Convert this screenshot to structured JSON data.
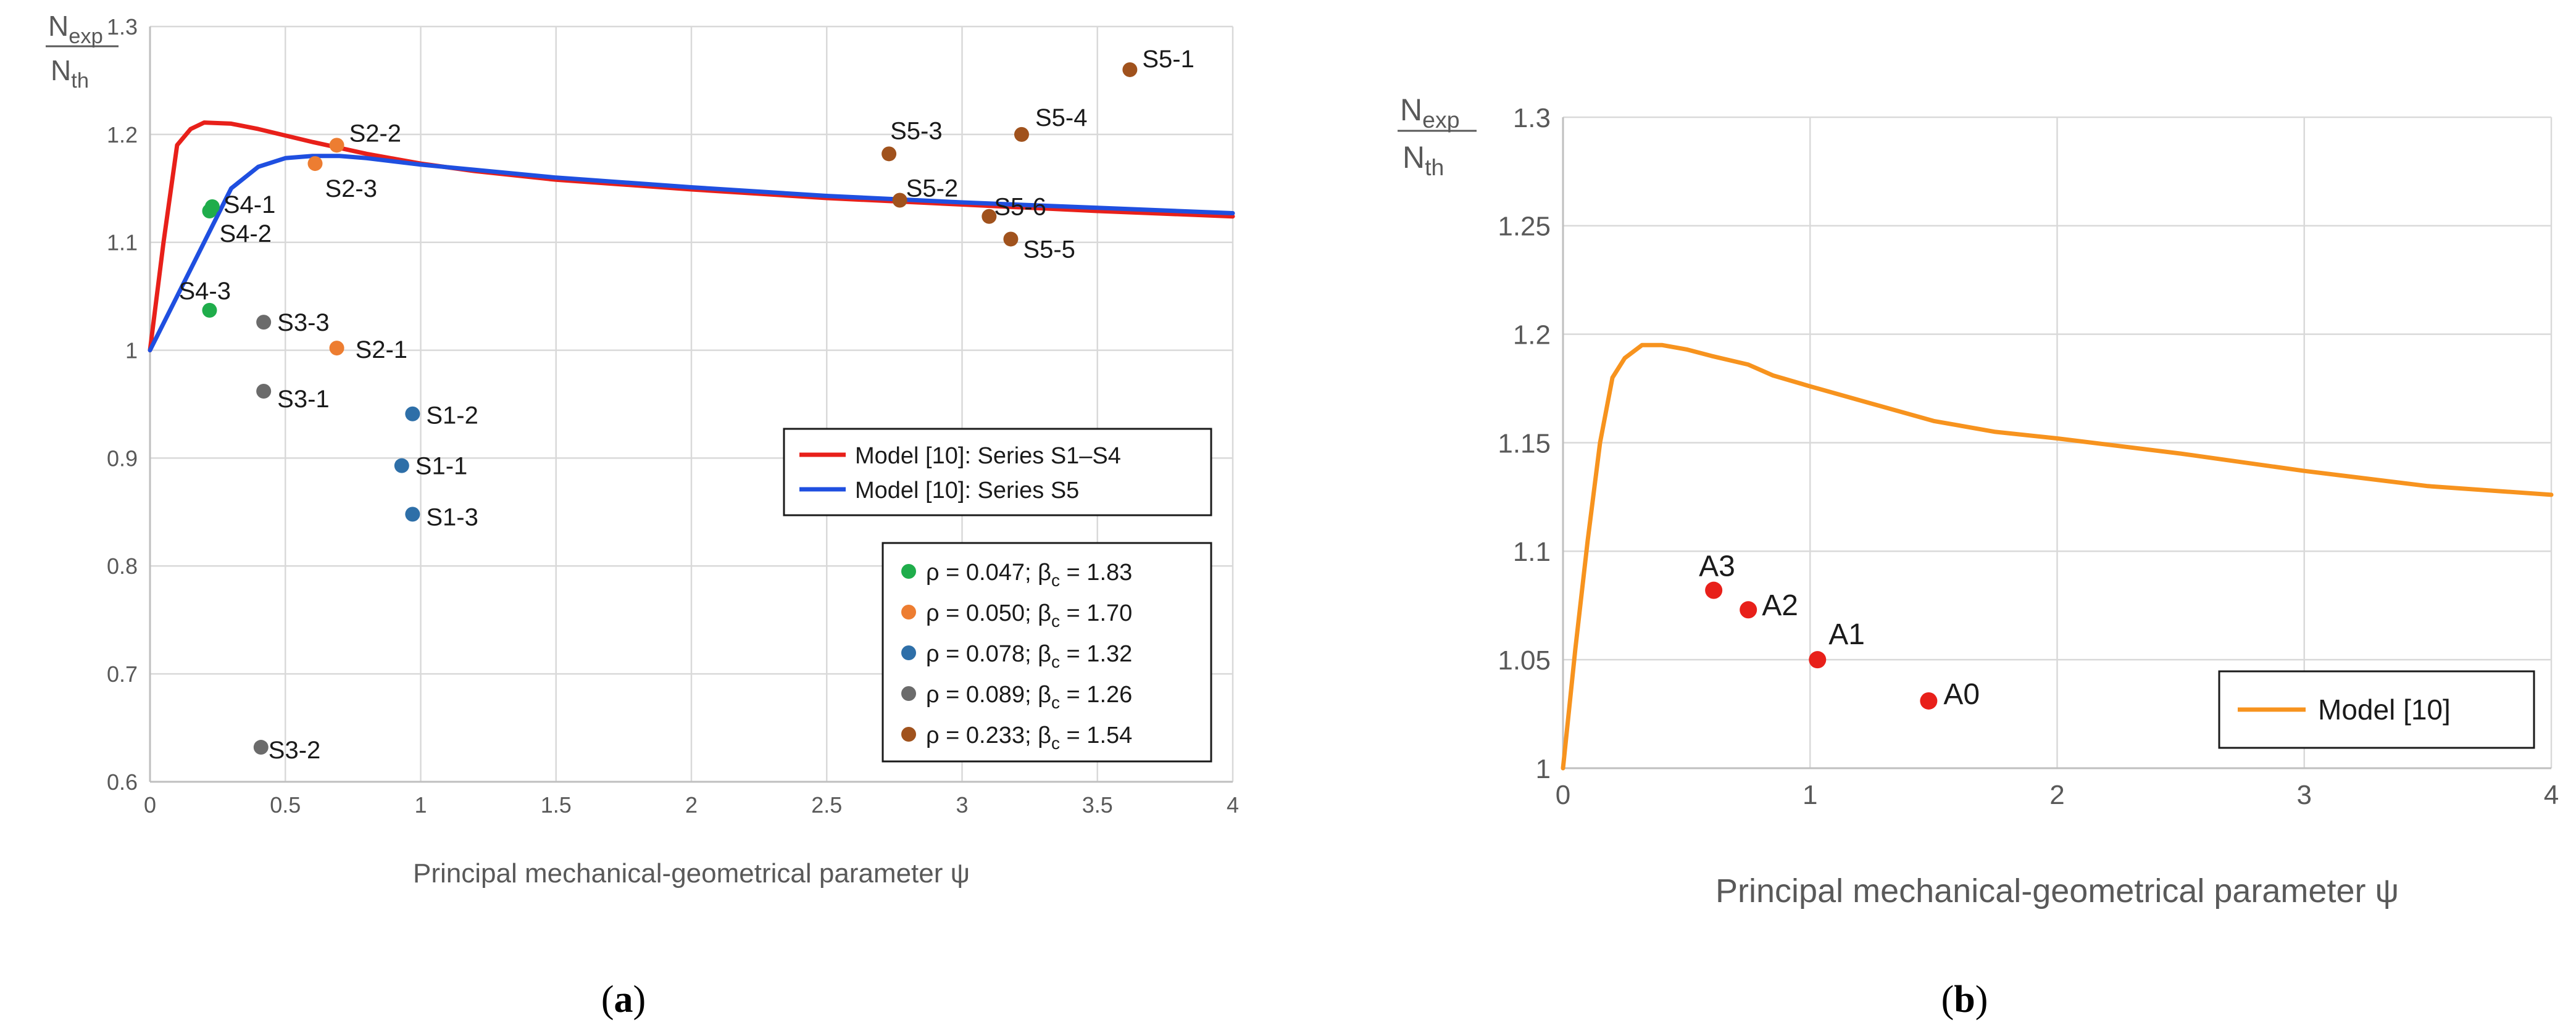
{
  "chart_data": [
    {
      "type": "scatter",
      "panel_label": "(a)",
      "ylabel_num": "N",
      "ylabel_num_sub": "exp",
      "ylabel_den": "N",
      "ylabel_den_sub": "th",
      "xlabel": "Principal mechanical-geometrical parameter ψ",
      "xlim": [
        0,
        4
      ],
      "ylim": [
        0.6,
        1.3
      ],
      "x_ticks": [
        0,
        0.5,
        1,
        1.5,
        2,
        2.5,
        3,
        3.5,
        4
      ],
      "y_ticks": [
        0.6,
        0.7,
        0.8,
        0.9,
        1,
        1.1,
        1.2,
        1.3
      ],
      "x_tick_labels": [
        "0",
        "0.5",
        "1",
        "1.5",
        "2",
        "2.5",
        "3",
        "3.5",
        "4"
      ],
      "y_tick_labels": [
        "0.6",
        "0.7",
        "0.8",
        "0.9",
        "1",
        "1.1",
        "1.2",
        "1.3"
      ],
      "grid": true,
      "lines": [
        {
          "name": "Model [10]: Series S1–S4",
          "color": "#e8201a",
          "x": [
            0,
            0.05,
            0.1,
            0.15,
            0.2,
            0.3,
            0.4,
            0.6,
            0.8,
            1,
            1.2,
            1.5,
            2,
            2.5,
            3,
            3.5,
            4
          ],
          "y": [
            1.0,
            1.1,
            1.19,
            1.205,
            1.211,
            1.21,
            1.205,
            1.193,
            1.182,
            1.173,
            1.166,
            1.158,
            1.149,
            1.141,
            1.135,
            1.129,
            1.124
          ]
        },
        {
          "name": "Model [10]: Series S5",
          "color": "#1f4fe0",
          "x": [
            0,
            0.1,
            0.2,
            0.3,
            0.4,
            0.5,
            0.6,
            0.7,
            0.8,
            1,
            1.5,
            2,
            2.5,
            3,
            3.5,
            4
          ],
          "y": [
            1.0,
            1.05,
            1.1,
            1.15,
            1.17,
            1.178,
            1.18,
            1.18,
            1.178,
            1.172,
            1.16,
            1.151,
            1.143,
            1.137,
            1.132,
            1.127
          ]
        }
      ],
      "point_groups": [
        {
          "name": "ρ = 0.047; βc = 1.83",
          "rho": "ρ = 0.047; β",
          "sub": "c",
          "beta": " = 1.83",
          "color": "#1fad4b",
          "points": [
            {
              "label": "S4-1",
              "x": 0.23,
              "y": 1.133
            },
            {
              "label": "S4-2",
              "x": 0.22,
              "y": 1.129
            },
            {
              "label": "S4-3",
              "x": 0.22,
              "y": 1.037
            }
          ]
        },
        {
          "name": "ρ = 0.050; βc = 1.70",
          "rho": "ρ = 0.050; β",
          "sub": "c",
          "beta": " = 1.70",
          "color": "#ed7d31",
          "points": [
            {
              "label": "S2-2",
              "x": 0.69,
              "y": 1.19
            },
            {
              "label": "S2-3",
              "x": 0.61,
              "y": 1.173
            },
            {
              "label": "S2-1",
              "x": 0.69,
              "y": 1.002
            }
          ]
        },
        {
          "name": "ρ = 0.078; βc = 1.32",
          "rho": "ρ = 0.078; β",
          "sub": "c",
          "beta": " = 1.32",
          "color": "#2e6fa8",
          "points": [
            {
              "label": "S1-2",
              "x": 0.97,
              "y": 0.941
            },
            {
              "label": "S1-1",
              "x": 0.93,
              "y": 0.893
            },
            {
              "label": "S1-3",
              "x": 0.97,
              "y": 0.848
            }
          ]
        },
        {
          "name": "ρ = 0.089; βc = 1.26",
          "rho": "ρ = 0.089; β",
          "sub": "c",
          "beta": " = 1.26",
          "color": "#6b6b6b",
          "points": [
            {
              "label": "S3-3",
              "x": 0.42,
              "y": 1.026
            },
            {
              "label": "S3-1",
              "x": 0.42,
              "y": 0.962
            },
            {
              "label": "S3-2",
              "x": 0.41,
              "y": 0.632
            }
          ]
        },
        {
          "name": "ρ = 0.233; βc = 1.54",
          "rho": "ρ = 0.233; β",
          "sub": "c",
          "beta": " = 1.54",
          "color": "#a0521d",
          "points": [
            {
              "label": "S5-1",
              "x": 3.62,
              "y": 1.26
            },
            {
              "label": "S5-4",
              "x": 3.22,
              "y": 1.2
            },
            {
              "label": "S5-3",
              "x": 2.73,
              "y": 1.182
            },
            {
              "label": "S5-2",
              "x": 2.77,
              "y": 1.139
            },
            {
              "label": "S5-6",
              "x": 3.1,
              "y": 1.124
            },
            {
              "label": "S5-5",
              "x": 3.18,
              "y": 1.103
            }
          ]
        }
      ]
    },
    {
      "type": "scatter",
      "panel_label": "(b)",
      "ylabel_num": "N",
      "ylabel_num_sub": "exp",
      "ylabel_den": "N",
      "ylabel_den_sub": "th",
      "xlabel": "Principal mechanical-geometrical parameter ψ",
      "xlim": [
        0,
        4
      ],
      "ylim": [
        1,
        1.3
      ],
      "x_ticks": [
        0,
        1,
        2,
        3,
        4
      ],
      "y_ticks": [
        1,
        1.05,
        1.1,
        1.15,
        1.2,
        1.25,
        1.3
      ],
      "x_tick_labels": [
        "0",
        "1",
        "2",
        "3",
        "4"
      ],
      "y_tick_labels": [
        "1",
        "1.05",
        "1.1",
        "1.15",
        "1.2",
        "1.25",
        "1.3"
      ],
      "grid": true,
      "lines": [
        {
          "name": "Model [10]",
          "color": "#f7931e",
          "x": [
            0,
            0.05,
            0.1,
            0.15,
            0.2,
            0.25,
            0.32,
            0.4,
            0.5,
            0.6,
            0.75,
            0.85,
            1,
            1.25,
            1.5,
            1.75,
            2,
            2.5,
            3,
            3.5,
            4
          ],
          "y": [
            1.0,
            1.055,
            1.105,
            1.15,
            1.18,
            1.189,
            1.195,
            1.195,
            1.193,
            1.19,
            1.186,
            1.181,
            1.176,
            1.168,
            1.16,
            1.155,
            1.152,
            1.145,
            1.137,
            1.13,
            1.126
          ]
        }
      ],
      "point_groups": [
        {
          "name": "",
          "color": "#e8201a",
          "points": [
            {
              "label": "A3",
              "x": 0.61,
              "y": 1.082
            },
            {
              "label": "A2",
              "x": 0.75,
              "y": 1.073
            },
            {
              "label": "A1",
              "x": 1.03,
              "y": 1.05
            },
            {
              "label": "A0",
              "x": 1.48,
              "y": 1.031
            }
          ]
        }
      ]
    }
  ]
}
